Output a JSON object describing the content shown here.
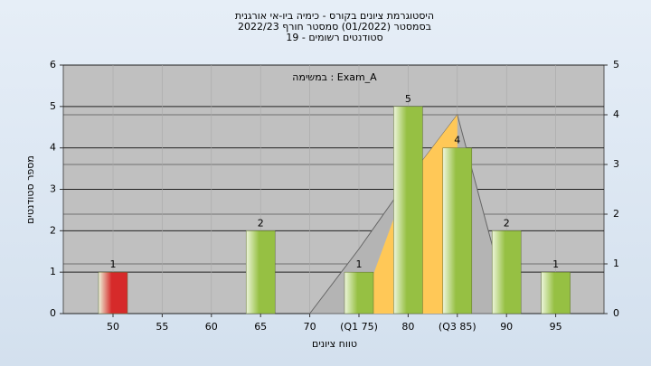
{
  "chart_data": {
    "type": "bar",
    "title": "היסטוגרמת ציונים בקורס - כימיה ביו-אי אורגנית",
    "subtitle": "בסמסטר  (01/2022)  סמסטר חורף 2022/23",
    "subtitle2": "סטודנטים רשומים - 19",
    "annotation": "במשימה : Exam_A",
    "x_label": "טווח ציונים",
    "y_label": "מספר סטודנטים",
    "categories": [
      "50",
      "55",
      "60",
      "65",
      "70",
      "(Q1 75)",
      "80",
      "(Q3 85)",
      "90",
      "95"
    ],
    "values": [
      1,
      0,
      0,
      2,
      0,
      1,
      5,
      4,
      2,
      1
    ],
    "colors": [
      "#d62a2a",
      "#96c043",
      "#96c043",
      "#96c043",
      "#96c043",
      "#96c043",
      "#96c043",
      "#96c043",
      "#96c043",
      "#96c043"
    ],
    "areas": [
      {
        "color": "#b4b4b4",
        "axis": "y2",
        "values": [
          null,
          null,
          null,
          null,
          0,
          1.3,
          2.7,
          4,
          0.3,
          null
        ]
      },
      {
        "color": "#ffc857",
        "axis": "y2",
        "values": [
          null,
          null,
          null,
          null,
          null,
          0,
          2.7,
          4,
          null,
          null
        ]
      }
    ],
    "ylim": [
      0,
      6
    ],
    "yticks": [
      0,
      1,
      2,
      3,
      4,
      5,
      6
    ],
    "y2lim": [
      0,
      5
    ],
    "y2ticks": [
      0,
      1,
      2,
      3,
      4,
      5
    ],
    "grid": true
  }
}
